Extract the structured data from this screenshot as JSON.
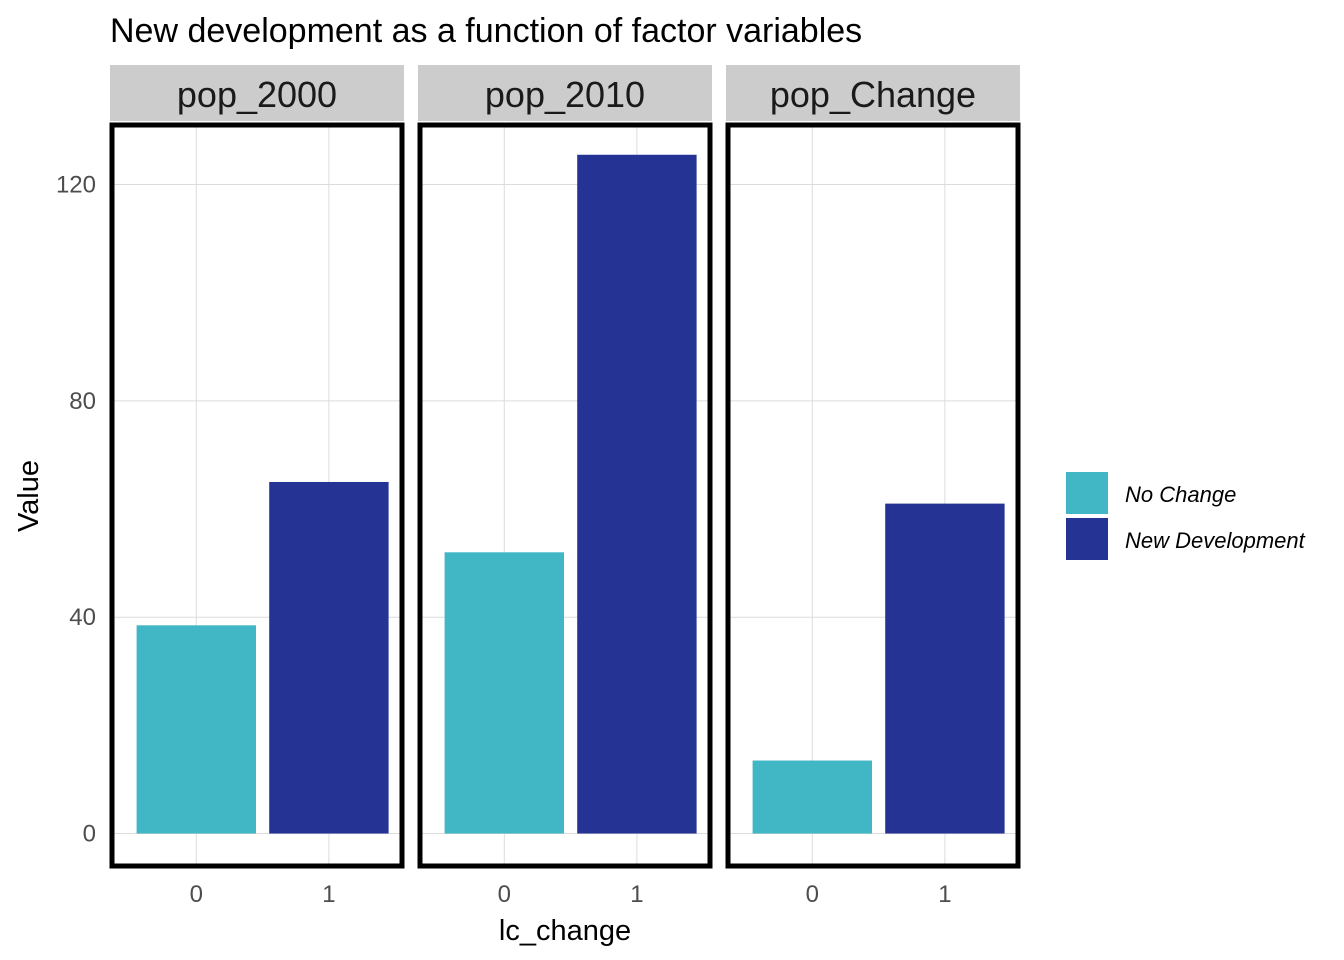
{
  "chart_data": {
    "type": "bar",
    "title": "New development as a function of factor variables",
    "xlabel": "lc_change",
    "ylabel": "Value",
    "ylim": [
      -6,
      131
    ],
    "yticks": [
      0,
      40,
      80,
      120
    ],
    "grid": true,
    "legend_position": "right",
    "categories": [
      "0",
      "1"
    ],
    "legend": [
      {
        "label": "No Change",
        "color": "#41B6C4"
      },
      {
        "label": "New Development",
        "color": "#253494"
      }
    ],
    "facets": [
      {
        "label": "pop_2000",
        "values": [
          38.5,
          65
        ]
      },
      {
        "label": "pop_2010",
        "values": [
          52,
          125.5
        ]
      },
      {
        "label": "pop_Change",
        "values": [
          13.5,
          61
        ]
      }
    ]
  }
}
